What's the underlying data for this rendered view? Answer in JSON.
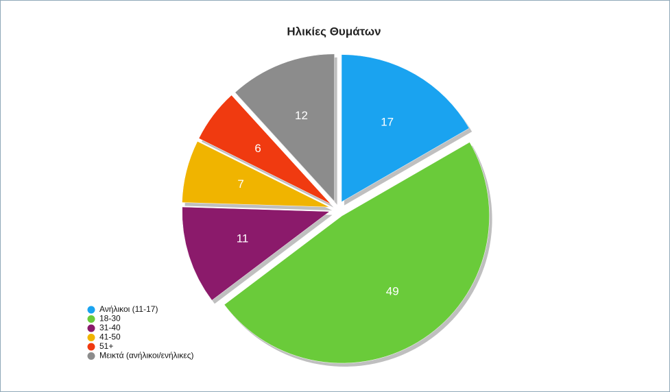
{
  "chart_data": {
    "type": "pie",
    "title": "Ηλικίες Θυμάτων",
    "categories": [
      "Ανήλικοι (11-17)",
      "18-30",
      "31-40",
      "41-50",
      "51+",
      "Μεικτά (ανήλικοι/ενήλικες)"
    ],
    "values": [
      17,
      49,
      11,
      7,
      6,
      12
    ],
    "colors": [
      "#1aa3f0",
      "#6acb3a",
      "#8b1a6b",
      "#f0b400",
      "#f03a10",
      "#8c8c8c"
    ],
    "legend": "bottom-left"
  }
}
